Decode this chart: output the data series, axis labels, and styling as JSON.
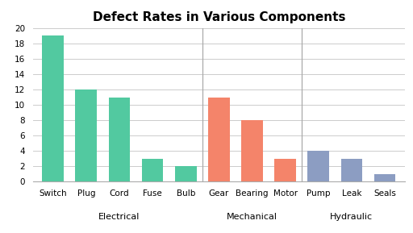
{
  "title": "Defect Rates in Various Components",
  "categories": [
    "Switch",
    "Plug",
    "Cord",
    "Fuse",
    "Bulb",
    "Gear",
    "Bearing",
    "Motor",
    "Pump",
    "Leak",
    "Seals"
  ],
  "values": [
    19,
    12,
    11,
    3,
    2,
    11,
    8,
    3,
    4,
    3,
    1
  ],
  "colors": [
    "#52c9a0",
    "#52c9a0",
    "#52c9a0",
    "#52c9a0",
    "#52c9a0",
    "#f4846a",
    "#f4846a",
    "#f4846a",
    "#8c9dc2",
    "#8c9dc2",
    "#8c9dc2"
  ],
  "groups": [
    {
      "label": "Electrical",
      "start": 0,
      "end": 4
    },
    {
      "label": "Mechanical",
      "start": 5,
      "end": 7
    },
    {
      "label": "Hydraulic",
      "start": 8,
      "end": 10
    }
  ],
  "separators": [
    4.5,
    7.5
  ],
  "ylim": [
    0,
    20
  ],
  "yticks": [
    0,
    2,
    4,
    6,
    8,
    10,
    12,
    14,
    16,
    18,
    20
  ],
  "background_color": "#ffffff",
  "title_fontsize": 11,
  "bar_width": 0.65,
  "grid_color": "#cccccc",
  "sep_color": "#aaaaaa"
}
